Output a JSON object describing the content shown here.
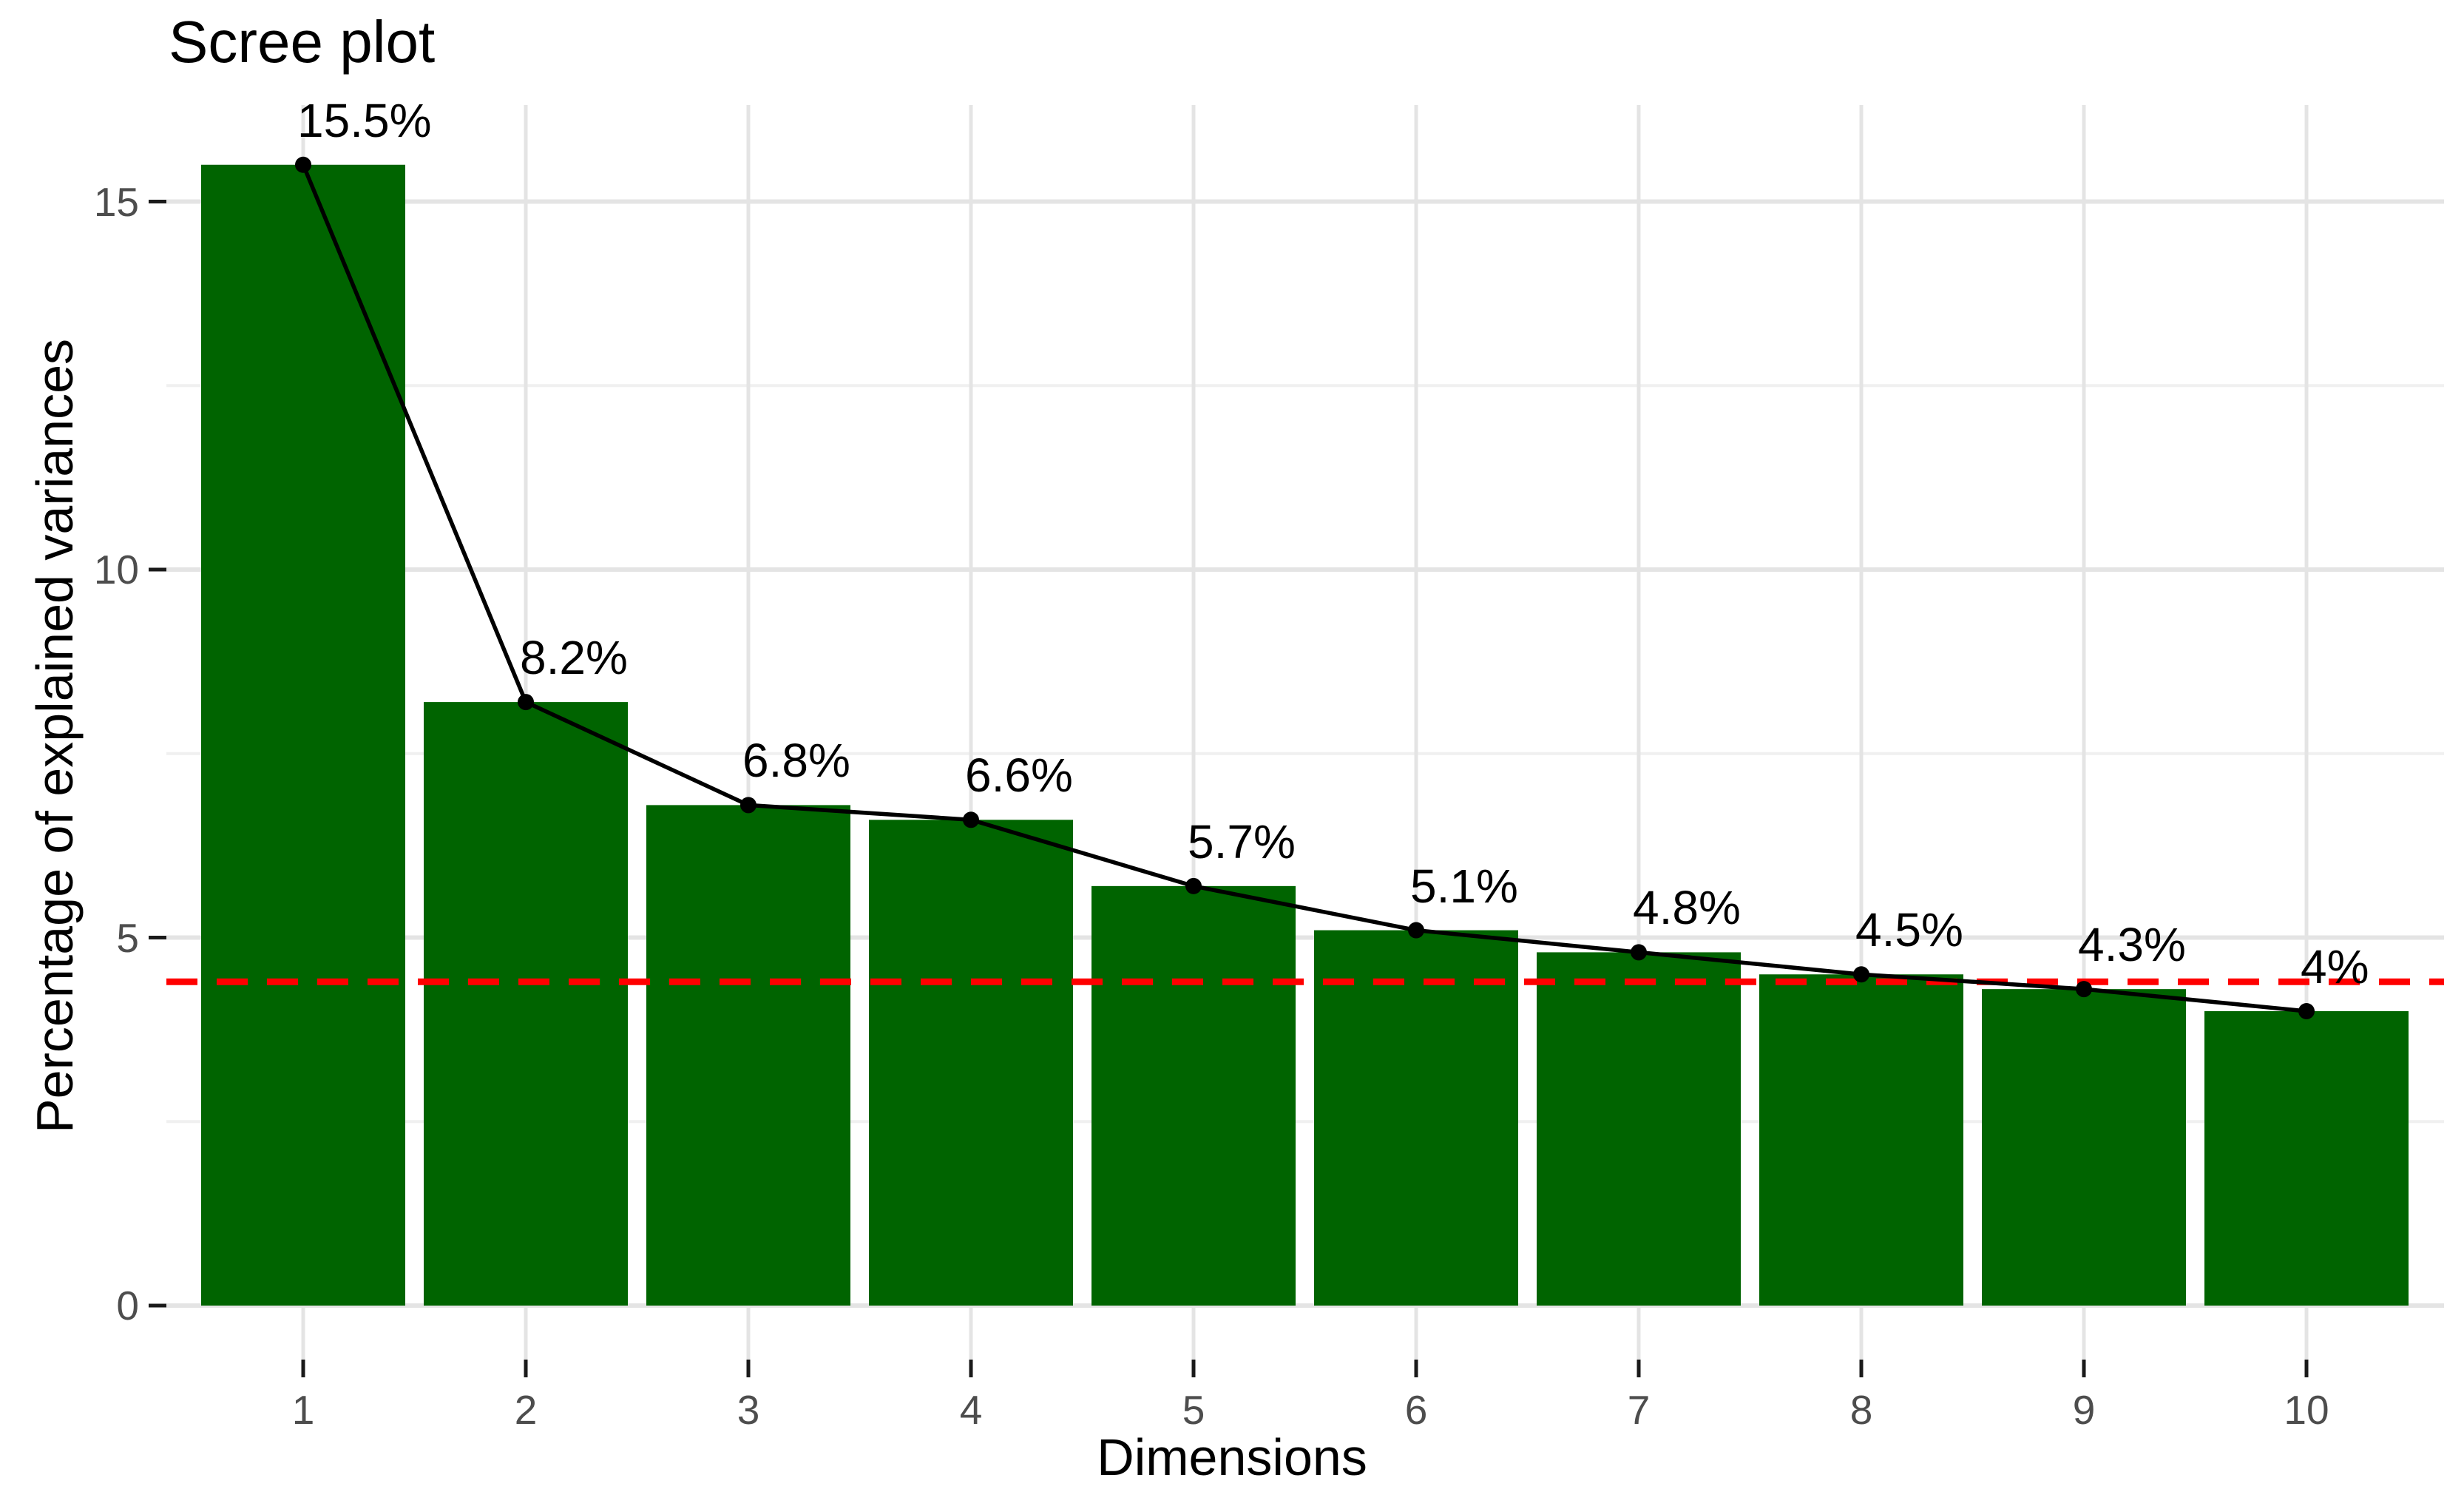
{
  "figure": {
    "background": "#FFFFFF"
  },
  "chart_data": {
    "type": "bar",
    "title": "Scree plot",
    "xlabel": "Dimensions",
    "ylabel": "Percentage of explained variances",
    "categories": [
      "1",
      "2",
      "3",
      "4",
      "5",
      "6",
      "7",
      "8",
      "9",
      "10"
    ],
    "values": [
      15.5,
      8.2,
      6.8,
      6.6,
      5.7,
      5.1,
      4.8,
      4.5,
      4.3,
      4.0
    ],
    "bar_labels": [
      "15.5%",
      "8.2%",
      "6.8%",
      "6.6%",
      "5.7%",
      "5.1%",
      "4.8%",
      "4.5%",
      "4.3%",
      "4%"
    ],
    "line_overlay": {
      "show_line": true,
      "show_points": true,
      "color": "#000000"
    },
    "reference_line": {
      "value": 4.4,
      "color": "#FF0000",
      "style": "dashed"
    },
    "ylim": [
      0,
      16.3
    ],
    "yticks": [
      0,
      5,
      10,
      15
    ],
    "yticks_minor": [
      2.5,
      7.5,
      12.5
    ],
    "grid": true,
    "legend_position": "none",
    "bar_color": "#006400",
    "grid_major_color": "#E4E4E4",
    "grid_minor_color": "#F0F0F0",
    "axis_text_color": "#4D4D4D",
    "tick_mark_color": "#1A1A1A"
  }
}
